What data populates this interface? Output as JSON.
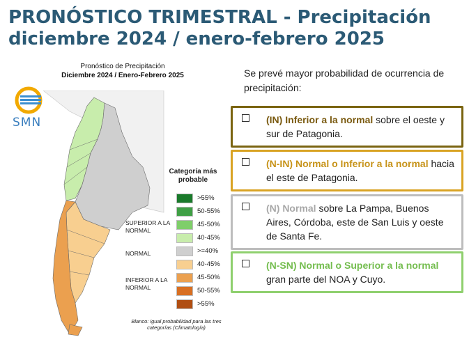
{
  "title": {
    "line1": "PRONÓSTICO TRIMESTRAL - Precipitación",
    "line2": "diciembre 2024 / enero-febrero 2025"
  },
  "map": {
    "title_line1": "Pronóstico de Precipitación",
    "title_line2": "Diciembre 2024 / Enero-Febrero 2025",
    "logo_text": "SMN",
    "caption": "Blanco: igual probabilidad para las tres categorías (Climatología)"
  },
  "legend": {
    "title": "Categoría más probable",
    "group_superior": "SUPERIOR A LA NORMAL",
    "group_normal": "NORMAL",
    "group_inferior": "INFERIOR A LA NORMAL",
    "items": [
      {
        "label": ">55%",
        "color": "#1a7a2b"
      },
      {
        "label": "50-55%",
        "color": "#3f9f45"
      },
      {
        "label": "45-50%",
        "color": "#7fce6a"
      },
      {
        "label": "40-45%",
        "color": "#c8edac"
      },
      {
        "label": ">=40%",
        "color": "#cfcfcf"
      },
      {
        "label": "40-45%",
        "color": "#f8cf90"
      },
      {
        "label": "45-50%",
        "color": "#eba04f"
      },
      {
        "label": "50-55%",
        "color": "#d86f22"
      },
      {
        "label": ">55%",
        "color": "#b04e12"
      }
    ]
  },
  "intro": "Se prevé mayor probabilidad de ocurrencia de precipitación:",
  "boxes": [
    {
      "category": "(IN) Inferior a la normal",
      "text": " sobre el oeste y sur de Patagonia.",
      "border": "#7a6410",
      "cat_color": "#7a5a10"
    },
    {
      "category": "(N-IN) Normal o Inferior a la normal",
      "text": " hacia el este de Patagonia.",
      "border": "#d9a323",
      "cat_color": "#c79319"
    },
    {
      "category": "(N) Normal",
      "text": " sobre La Pampa, Buenos Aires, Córdoba, este de San Luis y oeste de Santa Fe.",
      "border": "#bdbdbd",
      "cat_color": "#a8a8a8"
    },
    {
      "category": "(N-SN) Normal o Superior a la normal",
      "text": " gran parte del NOA y Cuyo.",
      "border": "#8fd06e",
      "cat_color": "#74bd4f"
    }
  ]
}
